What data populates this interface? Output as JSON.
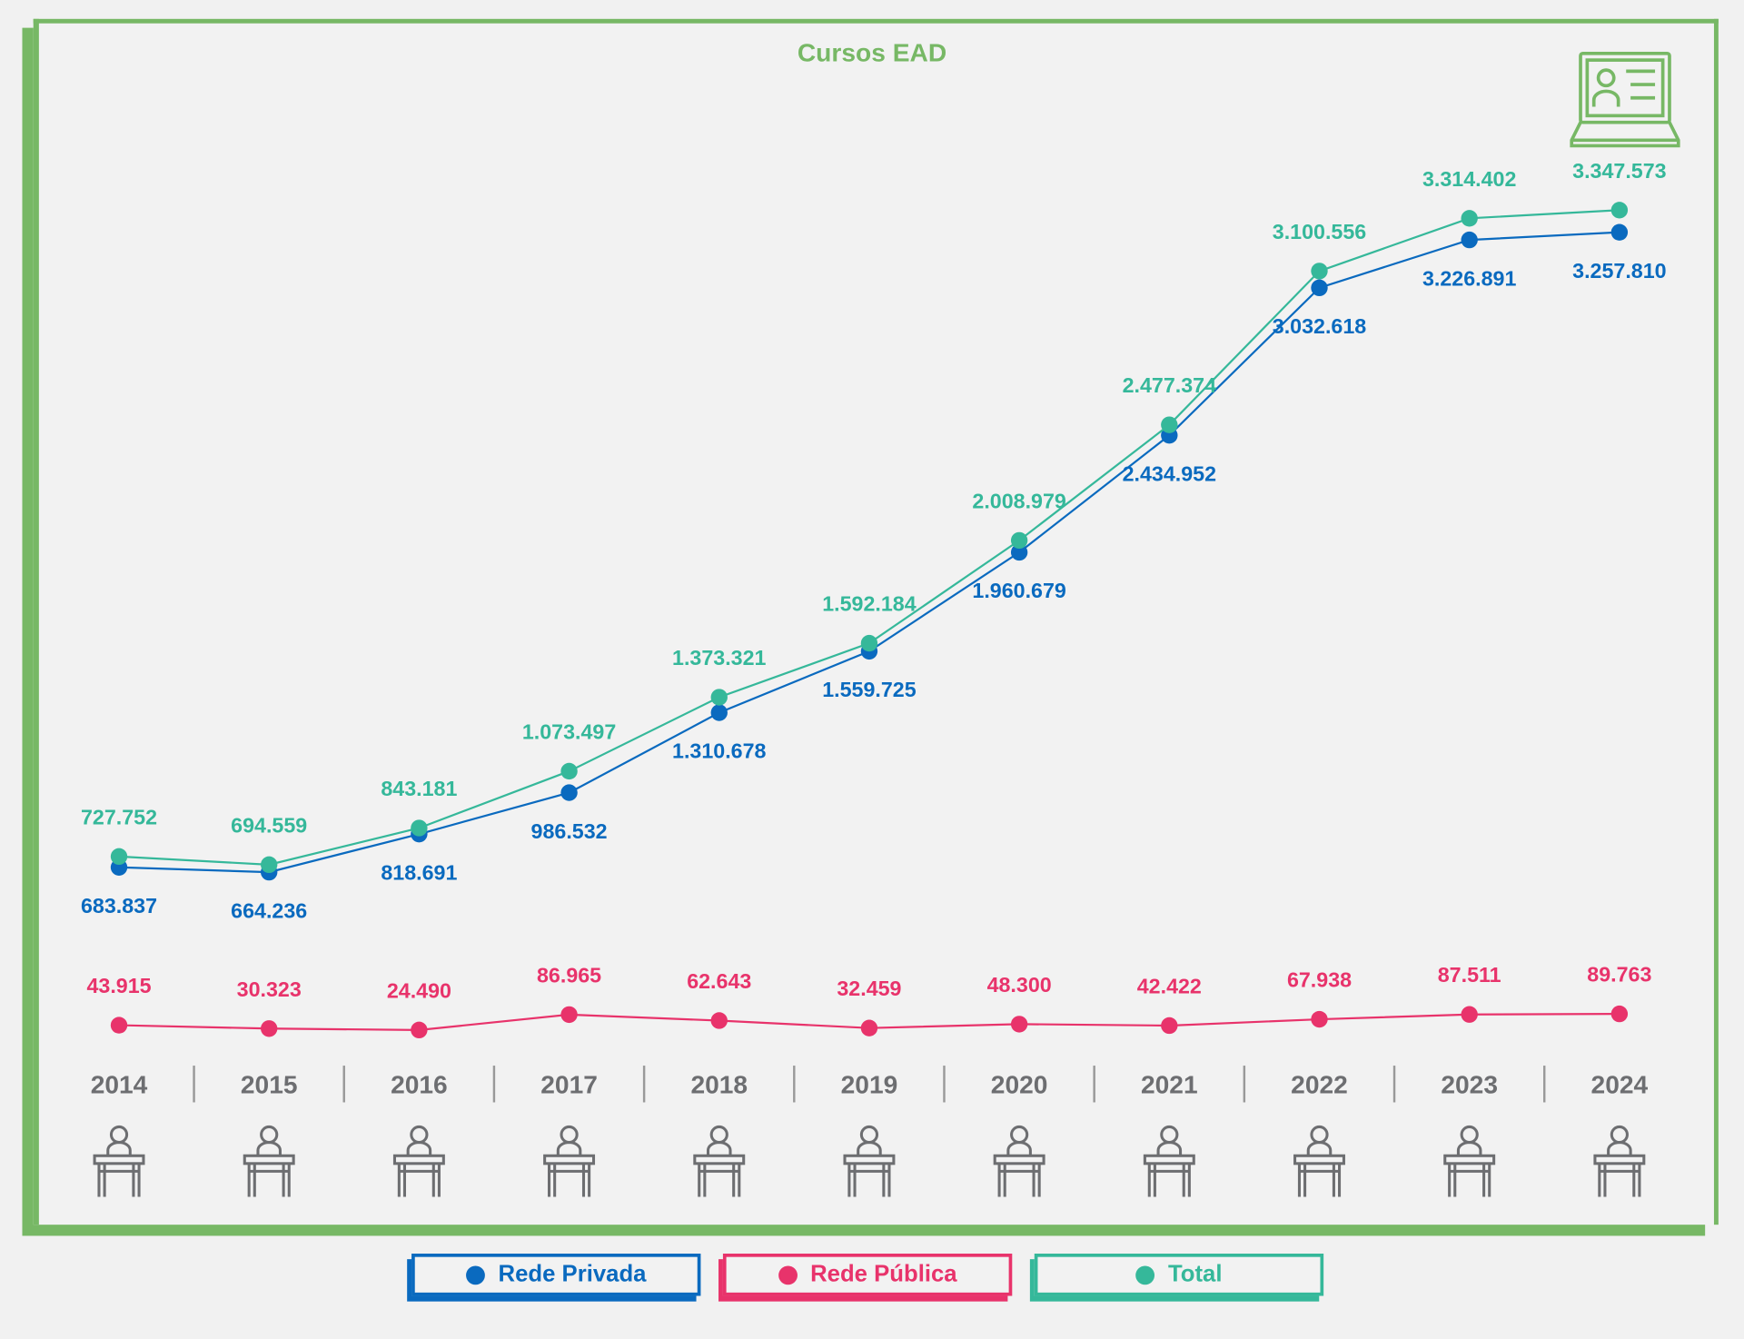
{
  "chart_data": {
    "type": "line",
    "title": "Cursos EAD",
    "x": [
      "2014",
      "2015",
      "2016",
      "2017",
      "2018",
      "2019",
      "2020",
      "2021",
      "2022",
      "2023",
      "2024"
    ],
    "series": [
      {
        "name": "Rede Privada",
        "color": "#0a6abf",
        "values": [
          683837,
          664236,
          818691,
          986532,
          1310678,
          1559725,
          1960679,
          2434952,
          3032618,
          3226891,
          3257810
        ],
        "labels": [
          "683.837",
          "664.236",
          "818.691",
          "986.532",
          "1.310.678",
          "1.559.725",
          "1.960.679",
          "2.434.952",
          "3.032.618",
          "3.226.891",
          "3.257.810"
        ]
      },
      {
        "name": "Rede Pública",
        "color": "#e8336b",
        "values": [
          43915,
          30323,
          24490,
          86965,
          62643,
          32459,
          48300,
          42422,
          67938,
          87511,
          89763
        ],
        "labels": [
          "43.915",
          "30.323",
          "24.490",
          "86.965",
          "62.643",
          "32.459",
          "48.300",
          "42.422",
          "67.938",
          "87.511",
          "89.763"
        ]
      },
      {
        "name": "Total",
        "color": "#35b89a",
        "values": [
          727752,
          694559,
          843181,
          1073497,
          1373321,
          1592184,
          2008979,
          2477374,
          3100556,
          3314402,
          3347573
        ],
        "labels": [
          "727.752",
          "694.559",
          "843.181",
          "1.073.497",
          "1.373.321",
          "1.592.184",
          "2.008.979",
          "2.477.374",
          "3.100.556",
          "3.314.402",
          "3.347.573"
        ]
      }
    ],
    "ylim": [
      0,
      3500000
    ],
    "grid": false,
    "legend_position": "bottom",
    "xlabel": "",
    "ylabel": ""
  },
  "colors": {
    "frame": "#77b865",
    "axis_text": "#6d6e71"
  },
  "icons": {
    "header": "laptop-video-icon",
    "year": "student-desk-icon"
  }
}
